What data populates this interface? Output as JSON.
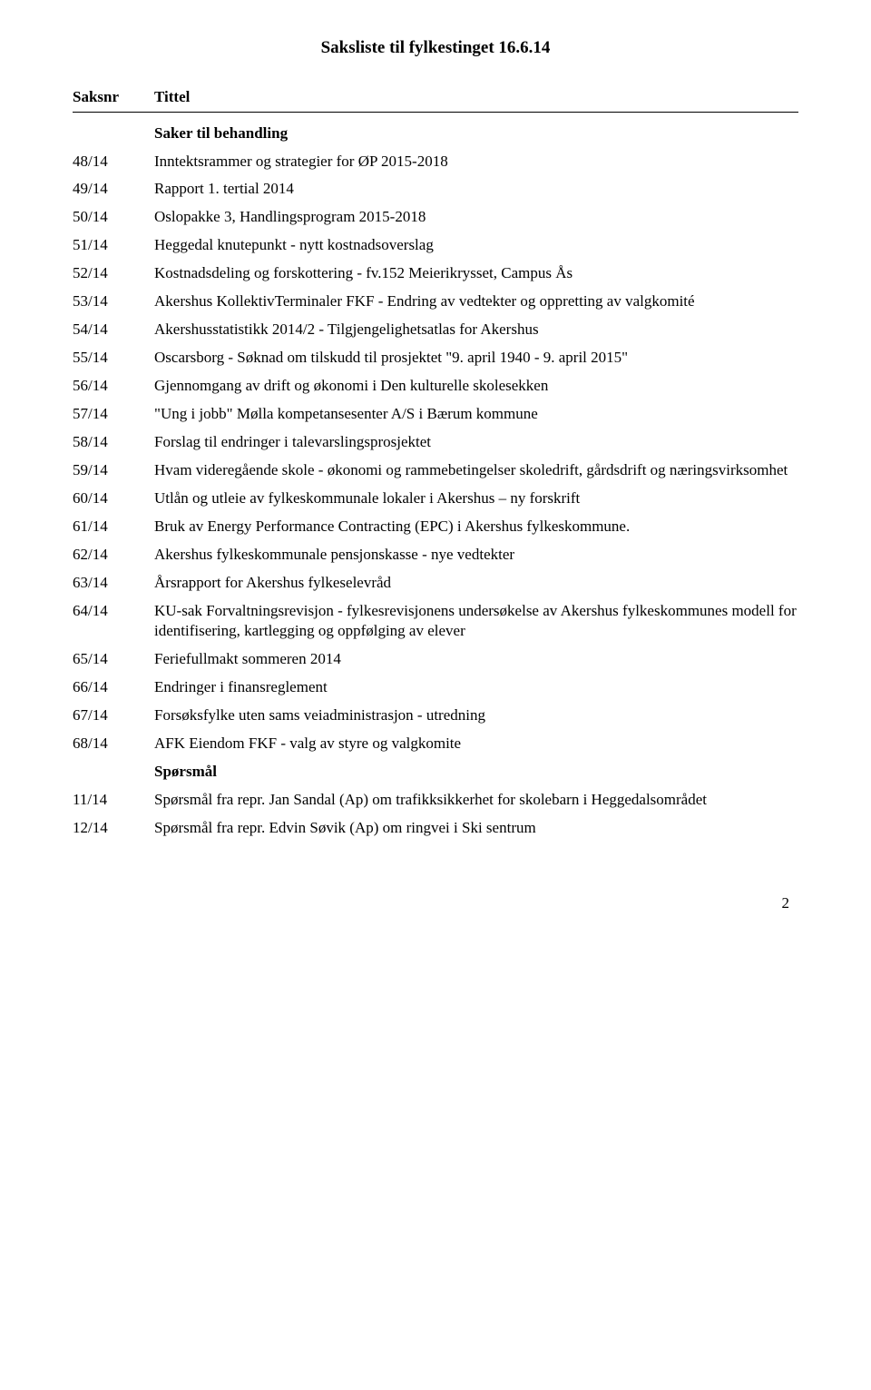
{
  "document_title": "Saksliste til fylkestinget 16.6.14",
  "header_saksnr": "Saksnr",
  "header_tittel": "Tittel",
  "section1_heading": "Saker til behandling",
  "items": [
    {
      "saksnr": "48/14",
      "tittel": "Inntektsrammer og strategier for ØP 2015-2018"
    },
    {
      "saksnr": "49/14",
      "tittel": "Rapport 1. tertial 2014"
    },
    {
      "saksnr": "50/14",
      "tittel": "Oslopakke 3, Handlingsprogram 2015-2018"
    },
    {
      "saksnr": "51/14",
      "tittel": "Heggedal knutepunkt - nytt kostnadsoverslag"
    },
    {
      "saksnr": "52/14",
      "tittel": "Kostnadsdeling og forskottering - fv.152 Meierikrysset, Campus Ås"
    },
    {
      "saksnr": "53/14",
      "tittel": "Akershus KollektivTerminaler FKF - Endring av vedtekter og oppretting av valgkomité"
    },
    {
      "saksnr": "54/14",
      "tittel": "Akershusstatistikk 2014/2 - Tilgjengelighetsatlas for Akershus"
    },
    {
      "saksnr": "55/14",
      "tittel": "Oscarsborg - Søknad om tilskudd til prosjektet \"9. april 1940 - 9. april 2015\""
    },
    {
      "saksnr": "56/14",
      "tittel": "Gjennomgang av drift og økonomi i Den kulturelle skolesekken"
    },
    {
      "saksnr": "57/14",
      "tittel": "\"Ung i jobb\" Mølla kompetansesenter A/S i Bærum kommune"
    },
    {
      "saksnr": "58/14",
      "tittel": "Forslag til endringer i talevarslingsprosjektet"
    },
    {
      "saksnr": "59/14",
      "tittel": "Hvam videregående skole - økonomi og rammebetingelser skoledrift, gårdsdrift og næringsvirksomhet"
    },
    {
      "saksnr": "60/14",
      "tittel": "Utlån og utleie av fylkeskommunale lokaler i Akershus – ny forskrift"
    },
    {
      "saksnr": "61/14",
      "tittel": "Bruk av Energy Performance Contracting (EPC) i Akershus fylkeskommune."
    },
    {
      "saksnr": "62/14",
      "tittel": "Akershus fylkeskommunale pensjonskasse - nye vedtekter"
    },
    {
      "saksnr": "63/14",
      "tittel": "Årsrapport for Akershus fylkeselevråd"
    },
    {
      "saksnr": "64/14",
      "tittel": "KU-sak Forvaltningsrevisjon - fylkesrevisjonens undersøkelse av Akershus fylkeskommunes modell for identifisering, kartlegging og oppfølging av elever"
    },
    {
      "saksnr": "65/14",
      "tittel": "Feriefullmakt sommeren 2014"
    },
    {
      "saksnr": "66/14",
      "tittel": "Endringer i finansreglement"
    },
    {
      "saksnr": "67/14",
      "tittel": "Forsøksfylke uten sams veiadministrasjon - utredning"
    },
    {
      "saksnr": "68/14",
      "tittel": "AFK Eiendom FKF - valg av styre og valgkomite"
    }
  ],
  "section2_heading": "Spørsmål",
  "questions": [
    {
      "saksnr": "11/14",
      "tittel": "Spørsmål fra repr. Jan Sandal (Ap) om trafikksikkerhet for skolebarn i Heggedalsområdet"
    },
    {
      "saksnr": "12/14",
      "tittel": "Spørsmål fra repr. Edvin Søvik (Ap) om ringvei i Ski sentrum"
    }
  ],
  "page_number": "2"
}
